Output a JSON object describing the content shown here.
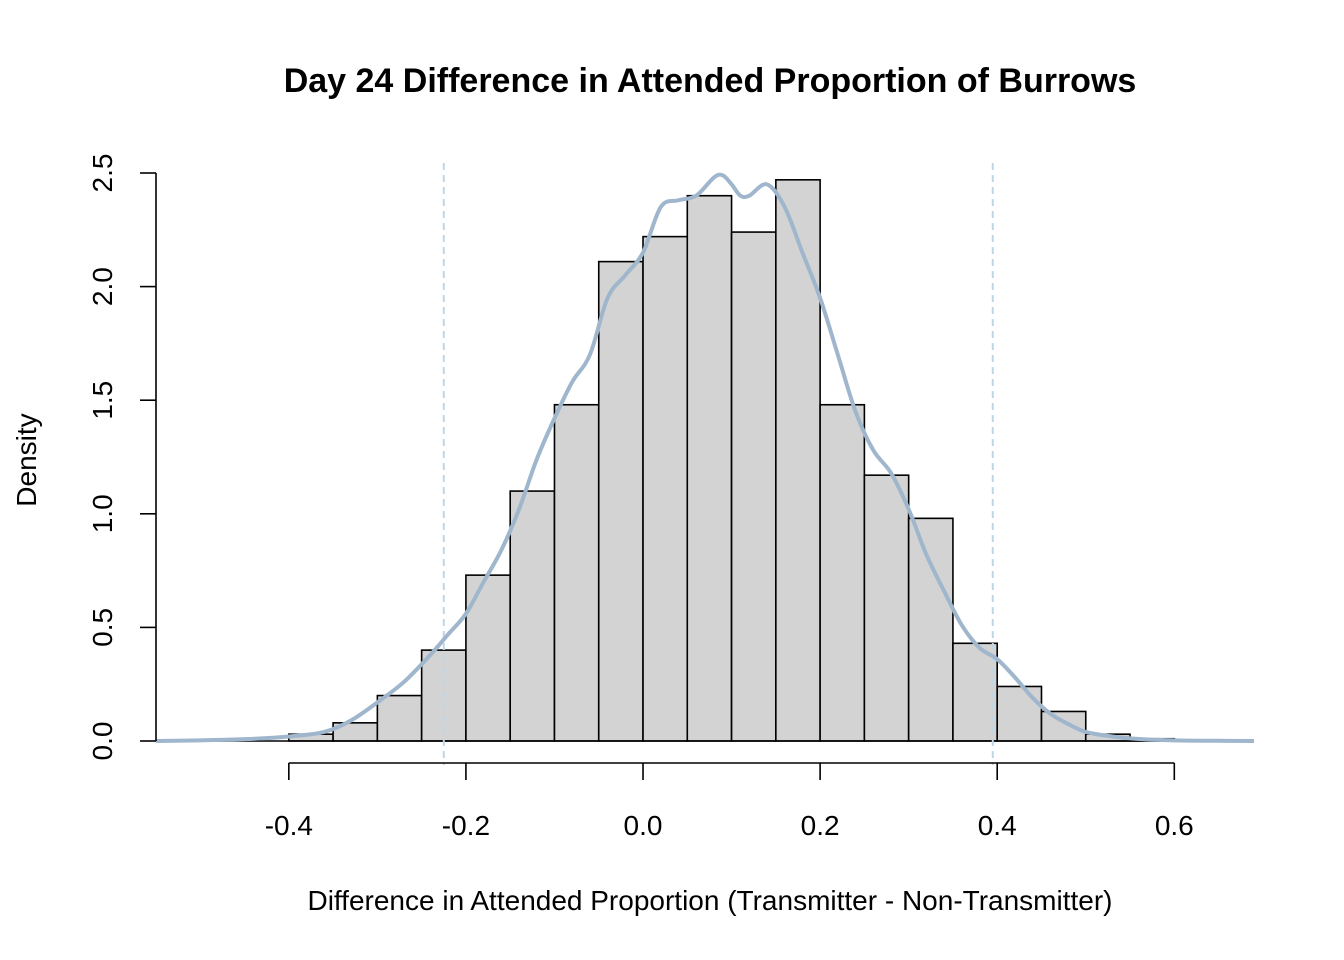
{
  "chart_data": {
    "type": "bar",
    "title": "Day 24 Difference in Attended Proportion of Burrows",
    "xlabel": "Difference in Attended Proportion (Transmitter - Non-Transmitter)",
    "ylabel": "Density",
    "xlim": [
      -0.55,
      0.69
    ],
    "ylim": [
      0,
      2.5
    ],
    "x_ticks": [
      {
        "value": -0.4,
        "label": "-0.4"
      },
      {
        "value": -0.2,
        "label": "-0.2"
      },
      {
        "value": 0.0,
        "label": "0.0"
      },
      {
        "value": 0.2,
        "label": "0.2"
      },
      {
        "value": 0.4,
        "label": "0.4"
      },
      {
        "value": 0.6,
        "label": "0.6"
      }
    ],
    "y_ticks": [
      {
        "value": 0.0,
        "label": "0.0"
      },
      {
        "value": 0.5,
        "label": "0.5"
      },
      {
        "value": 1.0,
        "label": "1.0"
      },
      {
        "value": 1.5,
        "label": "1.5"
      },
      {
        "value": 2.0,
        "label": "2.0"
      },
      {
        "value": 2.5,
        "label": "2.5"
      }
    ],
    "bins": [
      {
        "x0": -0.4,
        "x1": -0.35,
        "density": 0.03
      },
      {
        "x0": -0.35,
        "x1": -0.3,
        "density": 0.08
      },
      {
        "x0": -0.3,
        "x1": -0.25,
        "density": 0.2
      },
      {
        "x0": -0.25,
        "x1": -0.2,
        "density": 0.4
      },
      {
        "x0": -0.2,
        "x1": -0.15,
        "density": 0.73
      },
      {
        "x0": -0.15,
        "x1": -0.1,
        "density": 1.1
      },
      {
        "x0": -0.1,
        "x1": -0.05,
        "density": 1.48
      },
      {
        "x0": -0.05,
        "x1": 0.0,
        "density": 2.11
      },
      {
        "x0": 0.0,
        "x1": 0.05,
        "density": 2.22
      },
      {
        "x0": 0.05,
        "x1": 0.1,
        "density": 2.4
      },
      {
        "x0": 0.1,
        "x1": 0.15,
        "density": 2.24
      },
      {
        "x0": 0.15,
        "x1": 0.2,
        "density": 2.47
      },
      {
        "x0": 0.2,
        "x1": 0.25,
        "density": 1.48
      },
      {
        "x0": 0.25,
        "x1": 0.3,
        "density": 1.17
      },
      {
        "x0": 0.3,
        "x1": 0.35,
        "density": 0.98
      },
      {
        "x0": 0.35,
        "x1": 0.4,
        "density": 0.43
      },
      {
        "x0": 0.4,
        "x1": 0.45,
        "density": 0.24
      },
      {
        "x0": 0.45,
        "x1": 0.5,
        "density": 0.13
      },
      {
        "x0": 0.5,
        "x1": 0.55,
        "density": 0.03
      },
      {
        "x0": 0.55,
        "x1": 0.6,
        "density": 0.01
      }
    ],
    "density_curve": {
      "x": [
        -0.55,
        -0.5,
        -0.45,
        -0.4,
        -0.36,
        -0.33,
        -0.3,
        -0.27,
        -0.24,
        -0.22,
        -0.2,
        -0.18,
        -0.16,
        -0.14,
        -0.12,
        -0.1,
        -0.08,
        -0.06,
        -0.04,
        -0.02,
        0.0,
        0.02,
        0.04,
        0.06,
        0.08,
        0.09,
        0.1,
        0.11,
        0.12,
        0.14,
        0.16,
        0.18,
        0.2,
        0.22,
        0.24,
        0.26,
        0.28,
        0.3,
        0.32,
        0.34,
        0.36,
        0.38,
        0.4,
        0.42,
        0.44,
        0.46,
        0.48,
        0.5,
        0.53,
        0.56,
        0.6,
        0.65,
        0.69
      ],
      "y": [
        0.0,
        0.003,
        0.008,
        0.02,
        0.04,
        0.09,
        0.17,
        0.26,
        0.38,
        0.47,
        0.56,
        0.7,
        0.84,
        1.02,
        1.24,
        1.42,
        1.58,
        1.7,
        1.95,
        2.05,
        2.15,
        2.35,
        2.38,
        2.4,
        2.48,
        2.49,
        2.45,
        2.4,
        2.4,
        2.45,
        2.35,
        2.15,
        1.95,
        1.7,
        1.45,
        1.28,
        1.18,
        1.02,
        0.82,
        0.66,
        0.51,
        0.41,
        0.36,
        0.28,
        0.19,
        0.12,
        0.075,
        0.04,
        0.02,
        0.009,
        0.003,
        0.001,
        0.0
      ]
    },
    "vlines": [
      -0.225,
      0.395
    ],
    "colors": {
      "bar_fill": "#d3d3d3",
      "bar_stroke": "#000000",
      "curve": "#9fb6cd",
      "vline": "#bfd6e6",
      "axis": "#000000"
    },
    "grid": false,
    "legend": "none"
  }
}
